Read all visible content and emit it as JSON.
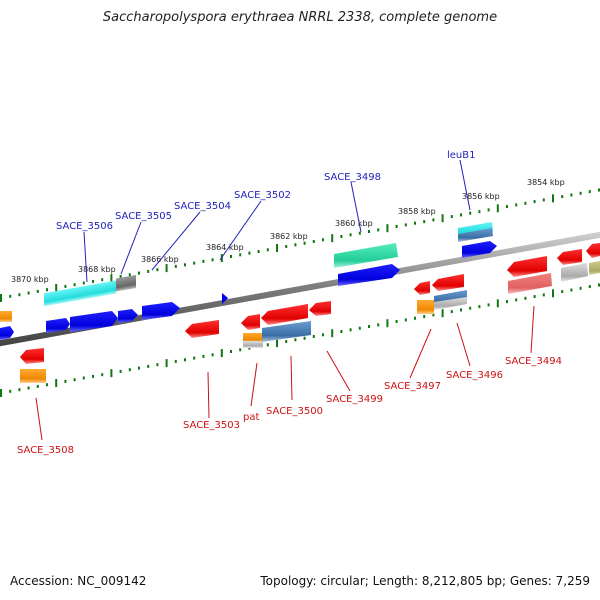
{
  "title": "Saccharopolyspora erythraea NRRL 2338, complete genome",
  "footer": {
    "accession": "Accession: NC_009142",
    "summary": "Topology: circular; Length: 8,212,805 bp; Genes: 7,259"
  },
  "scale_labels": [
    "3870 kbp",
    "3868 kbp",
    "3866 kbp",
    "3864 kbp",
    "3862 kbp",
    "3860 kbp",
    "3858 kbp",
    "3856 kbp",
    "3854 kbp"
  ],
  "top_gene_labels": [
    "SACE_3506",
    "SACE_3505",
    "SACE_3504",
    "SACE_3502",
    "SACE_3498",
    "leuB1"
  ],
  "bottom_gene_labels": [
    "SACE_3508",
    "SACE_3503",
    "pat",
    "SACE_3500",
    "SACE_3499",
    "SACE_3497",
    "SACE_3496",
    "SACE_3494"
  ],
  "colors": {
    "forward_gene": "#0000ee",
    "reverse_gene": "#ee0000",
    "cyan_gene": "#22dddd",
    "teal_gene": "#22ddaa",
    "steel_gene": "#4a7fb5",
    "orange_gene": "#ee8800",
    "gray_gene": "#888888",
    "tick_mark": "#117711",
    "backbone": "#777777"
  }
}
